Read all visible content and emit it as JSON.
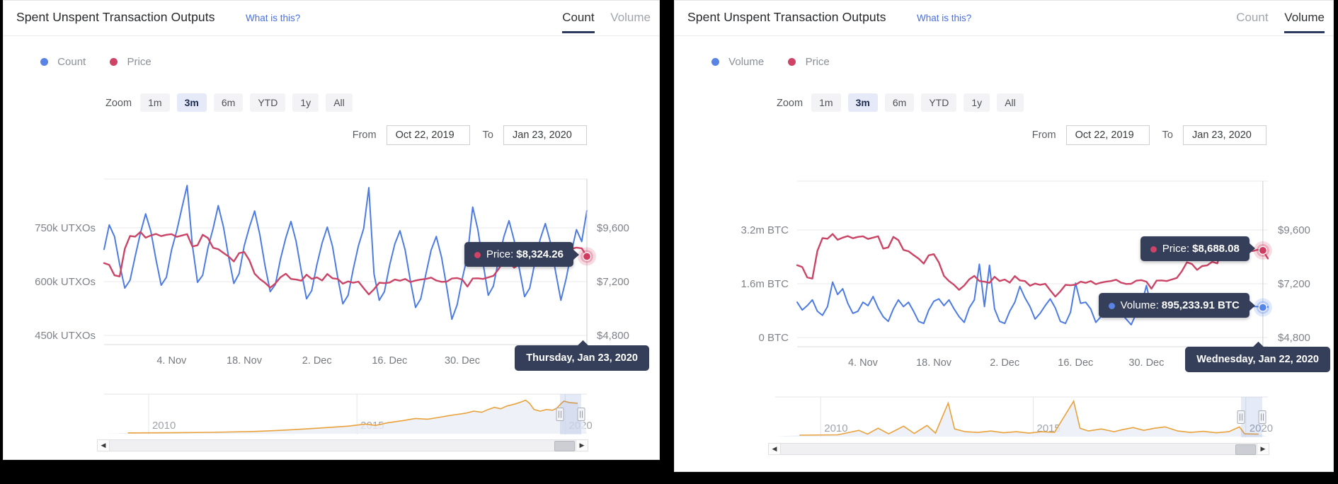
{
  "panels": [
    {
      "title": "Spent Unspent Transaction Outputs",
      "help_link": "What is this?",
      "toggle": {
        "options": [
          "Count",
          "Volume"
        ],
        "selected": "Count"
      },
      "legend": [
        {
          "label": "Count",
          "color": "#5a83e6"
        },
        {
          "label": "Price",
          "color": "#cf4466"
        }
      ],
      "zoom": {
        "label": "Zoom",
        "options": [
          "1m",
          "3m",
          "6m",
          "YTD",
          "1y",
          "All"
        ],
        "selected": "3m"
      },
      "range": {
        "from_label": "From",
        "from_value": "Oct 22, 2019",
        "to_label": "To",
        "to_value": "Jan 23, 2020"
      },
      "tooltips": {
        "price_label": "Price:",
        "price_value": "$8,324.26",
        "date": "Thursday, Jan 23, 2020"
      }
    },
    {
      "title": "Spent Unspent Transaction Outputs",
      "help_link": "What is this?",
      "toggle": {
        "options": [
          "Count",
          "Volume"
        ],
        "selected": "Volume"
      },
      "legend": [
        {
          "label": "Volume",
          "color": "#5a83e6"
        },
        {
          "label": "Price",
          "color": "#cf4466"
        }
      ],
      "zoom": {
        "label": "Zoom",
        "options": [
          "1m",
          "3m",
          "6m",
          "YTD",
          "1y",
          "All"
        ],
        "selected": "3m"
      },
      "range": {
        "from_label": "From",
        "from_value": "Oct 22, 2019",
        "to_label": "To",
        "to_value": "Jan 23, 2020"
      },
      "tooltips": {
        "price_label": "Price:",
        "price_value": "$8,688.08",
        "volume_label": "Volume:",
        "volume_value": "895,233.91 BTC",
        "date": "Wednesday, Jan 22, 2020"
      }
    }
  ],
  "chart_data": [
    {
      "type": "line",
      "title": "Spent Unspent Transaction Outputs - Count",
      "x_start": "2019-10-22",
      "x_end": "2020-01-23",
      "x_unit": "day",
      "xticks": [
        "4. Nov",
        "18. Nov",
        "2. Dec",
        "16. Dec",
        "30. Dec"
      ],
      "xtick_day_index": [
        13,
        27,
        41,
        55,
        69
      ],
      "y_left": {
        "label": "UTXO count",
        "ticks": [
          "750k UTXOs",
          "600k UTXOs",
          "450k UTXOs"
        ],
        "tick_values_k": [
          750,
          600,
          450
        ]
      },
      "y_right": {
        "label": "Price USD",
        "ticks": [
          "$9,600",
          "$7,200",
          "$4,800"
        ],
        "tick_values": [
          9600,
          7200,
          4800
        ]
      },
      "grid": true,
      "legend_position": "top-left",
      "series": [
        {
          "name": "Count",
          "color": "#4d7be4",
          "unit": "thousand UTXOs",
          "values": [
            690,
            758,
            726,
            648,
            582,
            604,
            671,
            735,
            789,
            741,
            662,
            590,
            612,
            688,
            742,
            806,
            868,
            702,
            598,
            618,
            694,
            748,
            812,
            752,
            668,
            595,
            622,
            700,
            752,
            797,
            731,
            645,
            572,
            592,
            664,
            722,
            768,
            712,
            628,
            552,
            575,
            648,
            708,
            752,
            698,
            612,
            538,
            562,
            635,
            700,
            748,
            862,
            622,
            548,
            572,
            645,
            705,
            742,
            688,
            602,
            528,
            552,
            622,
            688,
            726,
            668,
            585,
            495,
            535,
            608,
            672,
            808,
            745,
            652,
            562,
            588,
            662,
            725,
            770,
            715,
            635,
            558,
            582,
            655,
            718,
            762,
            708,
            625,
            548,
            608,
            682,
            745,
            712,
            798
          ]
        },
        {
          "name": "Price",
          "color": "#cc4465",
          "unit": "USD",
          "values": [
            8028,
            7946,
            7480,
            7430,
            8666,
            9240,
            9210,
            9420,
            9160,
            9260,
            9330,
            9230,
            9290,
            9320,
            9200,
            9260,
            9320,
            8770,
            8820,
            9290,
            9150,
            8710,
            8650,
            8480,
            8320,
            8100,
            8470,
            8520,
            8150,
            7550,
            7320,
            7150,
            6930,
            7120,
            7400,
            7550,
            7320,
            7290,
            7240,
            7510,
            7320,
            7390,
            7250,
            7540,
            7350,
            7320,
            7110,
            7210,
            7150,
            7200,
            6910,
            6630,
            6860,
            7150,
            7130,
            7160,
            7290,
            7240,
            7320,
            7180,
            7250,
            7290,
            7320,
            7380,
            7250,
            7190,
            7200,
            7340,
            7360,
            7290,
            6980,
            7340,
            7350,
            7320,
            7390,
            7460,
            7760,
            8160,
            8080,
            7820,
            7990,
            8020,
            8180,
            8110,
            8810,
            8820,
            8720,
            8910,
            8890,
            8700,
            8660,
            8720,
            8688,
            8324
          ]
        }
      ],
      "hover": {
        "day_index": 93,
        "date": "Thursday, Jan 23, 2020",
        "price_usd": 8324.26
      },
      "navigator": {
        "color": "#e9a23b",
        "years": [
          "2010",
          "2015",
          "2020"
        ],
        "description": "total historical count, normalized 0-1",
        "points": [
          [
            2009.5,
            0.004
          ],
          [
            2010.5,
            0.008
          ],
          [
            2011.5,
            0.02
          ],
          [
            2012.5,
            0.045
          ],
          [
            2013.2,
            0.08
          ],
          [
            2013.8,
            0.12
          ],
          [
            2014.3,
            0.16
          ],
          [
            2014.8,
            0.2
          ],
          [
            2015.2,
            0.26
          ],
          [
            2015.45,
            0.22
          ],
          [
            2015.75,
            0.3
          ],
          [
            2016.1,
            0.36
          ],
          [
            2016.4,
            0.42
          ],
          [
            2016.7,
            0.4
          ],
          [
            2017.0,
            0.46
          ],
          [
            2017.3,
            0.52
          ],
          [
            2017.6,
            0.57
          ],
          [
            2017.8,
            0.63
          ],
          [
            2018.0,
            0.6
          ],
          [
            2018.15,
            0.68
          ],
          [
            2018.3,
            0.74
          ],
          [
            2018.45,
            0.7
          ],
          [
            2018.6,
            0.78
          ],
          [
            2018.8,
            0.84
          ],
          [
            2018.95,
            0.9
          ],
          [
            2019.05,
            0.95
          ],
          [
            2019.15,
            0.85
          ],
          [
            2019.25,
            0.68
          ],
          [
            2019.4,
            0.63
          ],
          [
            2019.55,
            0.68
          ],
          [
            2019.7,
            0.66
          ],
          [
            2019.8,
            0.72
          ],
          [
            2019.9,
            0.85
          ],
          [
            2019.97,
            0.92
          ],
          [
            2020.1,
            0.88
          ],
          [
            2020.3,
            0.86
          ]
        ]
      }
    },
    {
      "type": "line",
      "title": "Spent Unspent Transaction Outputs - Volume",
      "x_start": "2019-10-22",
      "x_end": "2020-01-23",
      "x_unit": "day",
      "xticks": [
        "4. Nov",
        "18. Nov",
        "2. Dec",
        "16. Dec",
        "30. Dec"
      ],
      "xtick_day_index": [
        13,
        27,
        41,
        55,
        69
      ],
      "y_left": {
        "label": "Volume BTC",
        "ticks": [
          "3.2m BTC",
          "1.6m BTC",
          "0 BTC"
        ],
        "tick_values_m": [
          3.2,
          1.6,
          0
        ]
      },
      "y_right": {
        "label": "Price USD",
        "ticks": [
          "$9,600",
          "$7,200",
          "$4,800"
        ],
        "tick_values": [
          9600,
          7200,
          4800
        ]
      },
      "grid": true,
      "legend_position": "top-left",
      "series": [
        {
          "name": "Volume",
          "color": "#4d7be4",
          "unit": "million BTC",
          "values": [
            1.05,
            0.82,
            0.95,
            1.12,
            0.78,
            0.66,
            0.92,
            1.65,
            1.28,
            1.45,
            1.02,
            0.72,
            0.78,
            1.05,
            0.95,
            1.22,
            0.88,
            0.62,
            0.48,
            0.85,
            1.12,
            0.92,
            1.05,
            0.78,
            0.48,
            0.42,
            0.82,
            1.08,
            1.15,
            0.95,
            1.12,
            0.85,
            0.62,
            0.45,
            0.88,
            1.12,
            2.18,
            0.92,
            2.15,
            0.85,
            0.48,
            0.42,
            0.78,
            1.05,
            1.52,
            1.18,
            0.92,
            0.55,
            0.72,
            0.95,
            1.15,
            0.88,
            0.48,
            0.42,
            0.75,
            1.62,
            1.02,
            1.05,
            0.85,
            0.45,
            0.62,
            1.12,
            1.18,
            0.92,
            0.72,
            0.55,
            0.38,
            0.72,
            0.95,
            1.55,
            0.88,
            0.72,
            0.95,
            0.78,
            0.62,
            0.85,
            1.05,
            0.92,
            0.78,
            0.62,
            0.72,
            0.88,
            0.95,
            0.85,
            0.75,
            0.68,
            0.82,
            0.92,
            0.85,
            0.78,
            0.92,
            0.92,
            0.895,
            0.91
          ]
        },
        {
          "name": "Price",
          "color": "#cc4465",
          "unit": "USD",
          "values": [
            8028,
            7946,
            7480,
            7430,
            8666,
            9240,
            9210,
            9420,
            9160,
            9260,
            9330,
            9230,
            9290,
            9320,
            9200,
            9260,
            9320,
            8770,
            8820,
            9290,
            9150,
            8710,
            8650,
            8480,
            8320,
            8100,
            8470,
            8520,
            8150,
            7550,
            7320,
            7150,
            6930,
            7120,
            7400,
            7550,
            7320,
            7290,
            7240,
            7510,
            7320,
            7390,
            7250,
            7540,
            7350,
            7320,
            7110,
            7210,
            7150,
            7200,
            6910,
            6630,
            6860,
            7150,
            7130,
            7160,
            7290,
            7240,
            7320,
            7180,
            7250,
            7290,
            7320,
            7380,
            7250,
            7190,
            7200,
            7340,
            7360,
            7290,
            6980,
            7340,
            7350,
            7320,
            7390,
            7460,
            7760,
            8160,
            8080,
            7820,
            7990,
            8020,
            8180,
            8110,
            8810,
            8820,
            8720,
            8910,
            8890,
            8700,
            8660,
            8720,
            8688,
            8324
          ]
        }
      ],
      "hover": {
        "day_index": 92,
        "date": "Wednesday, Jan 22, 2020",
        "price_usd": 8688.08,
        "volume_btc": 895233.91
      },
      "navigator": {
        "color": "#e9a23b",
        "years": [
          "2010",
          "2015",
          "2020"
        ],
        "description": "historical daily volume, normalized 0-1",
        "points": [
          [
            2009.5,
            0.02
          ],
          [
            2010.4,
            0.03
          ],
          [
            2010.9,
            0.16
          ],
          [
            2011.1,
            0.05
          ],
          [
            2011.35,
            0.22
          ],
          [
            2011.6,
            0.06
          ],
          [
            2011.95,
            0.28
          ],
          [
            2012.2,
            0.07
          ],
          [
            2012.5,
            0.3
          ],
          [
            2012.7,
            0.08
          ],
          [
            2013.0,
            0.95
          ],
          [
            2013.15,
            0.2
          ],
          [
            2013.4,
            0.12
          ],
          [
            2013.7,
            0.1
          ],
          [
            2014.0,
            0.14
          ],
          [
            2014.3,
            0.09
          ],
          [
            2014.6,
            0.12
          ],
          [
            2014.9,
            0.08
          ],
          [
            2015.2,
            0.12
          ],
          [
            2015.5,
            0.1
          ],
          [
            2015.95,
            1.0
          ],
          [
            2016.1,
            0.22
          ],
          [
            2016.3,
            0.14
          ],
          [
            2016.6,
            0.2
          ],
          [
            2016.9,
            0.12
          ],
          [
            2017.1,
            0.18
          ],
          [
            2017.35,
            0.24
          ],
          [
            2017.6,
            0.16
          ],
          [
            2017.85,
            0.22
          ],
          [
            2018.1,
            0.26
          ],
          [
            2018.4,
            0.14
          ],
          [
            2018.7,
            0.1
          ],
          [
            2019.0,
            0.13
          ],
          [
            2019.3,
            0.09
          ],
          [
            2019.6,
            0.12
          ],
          [
            2019.85,
            0.26
          ],
          [
            2019.97,
            0.06
          ],
          [
            2020.3,
            0.05
          ]
        ]
      }
    }
  ]
}
